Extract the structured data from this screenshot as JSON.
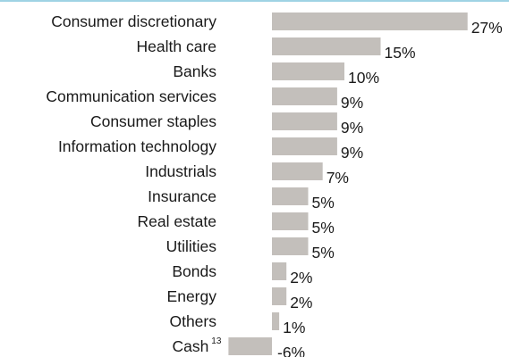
{
  "colors": {
    "bar": "#c3bfbb",
    "top_rule": "#9fd3e4",
    "text": "#1a1a1a"
  },
  "chart_data": {
    "type": "bar",
    "orientation": "horizontal",
    "categories": [
      "Consumer discretionary",
      "Health care",
      "Banks",
      "Communication services",
      "Consumer staples",
      "Information technology",
      "Industrials",
      "Insurance",
      "Real estate",
      "Utilities",
      "Bonds",
      "Energy",
      "Others",
      "Cash"
    ],
    "values": [
      27,
      15,
      10,
      9,
      9,
      9,
      7,
      5,
      5,
      5,
      2,
      2,
      1,
      -6
    ],
    "value_labels": [
      "27%",
      "15%",
      "10%",
      "9%",
      "9%",
      "9%",
      "7%",
      "5%",
      "5%",
      "5%",
      "2%",
      "2%",
      "1%",
      "-6%"
    ],
    "footnotes": {
      "Cash": "13"
    },
    "unit": "%",
    "title": "",
    "xlabel": "",
    "ylabel": "",
    "xlim": [
      -6,
      27
    ],
    "grid": false,
    "legend": "none"
  }
}
